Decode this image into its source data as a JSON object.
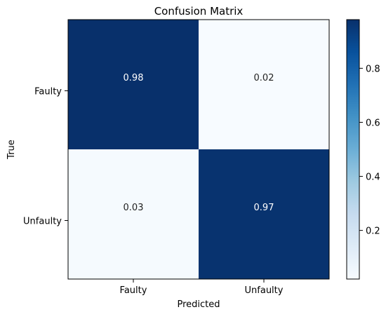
{
  "chart_data": {
    "type": "heatmap",
    "title": "Confusion Matrix",
    "xlabel": "Predicted",
    "ylabel": "True",
    "x_categories": [
      "Faulty",
      "Unfaulty"
    ],
    "y_categories": [
      "Faulty",
      "Unfaulty"
    ],
    "values": [
      [
        0.98,
        0.02
      ],
      [
        0.03,
        0.97
      ]
    ],
    "cell_labels": [
      [
        "0.98",
        "0.02"
      ],
      [
        "0.03",
        "0.97"
      ]
    ],
    "colormap": "Blues",
    "color_min": "#f7fbff",
    "color_max": "#08306b",
    "label_color_dark_cell": "#ffffff",
    "label_color_light_cell": "#222222",
    "colorbar": {
      "range": [
        0.02,
        0.98
      ],
      "ticks": [
        0.2,
        0.4,
        0.6,
        0.8
      ],
      "tick_labels": [
        "0.2",
        "0.4",
        "0.6",
        "0.8"
      ]
    },
    "grid": false
  }
}
